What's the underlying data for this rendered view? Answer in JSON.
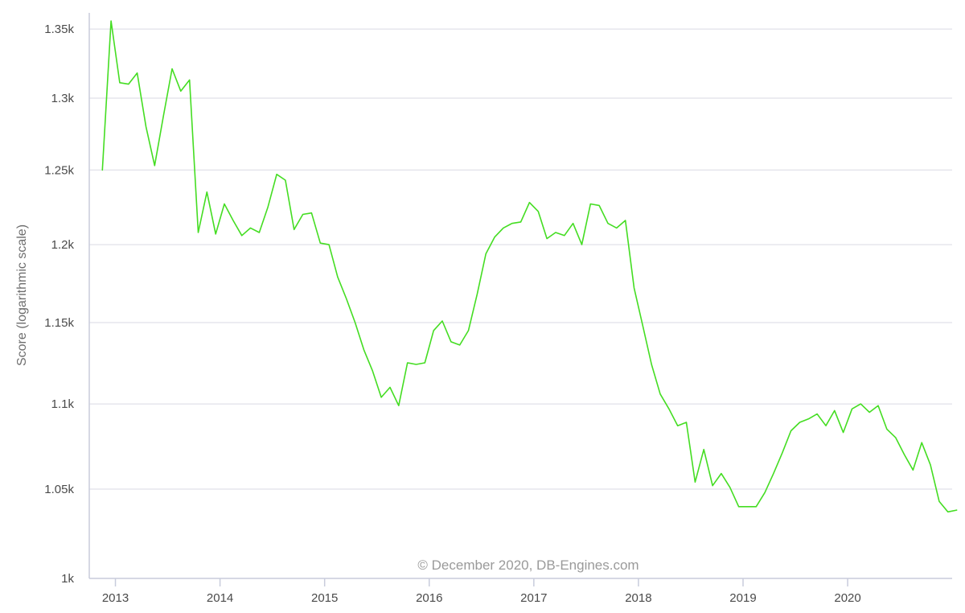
{
  "chart_data": {
    "type": "line",
    "title": "",
    "xlabel": "",
    "ylabel": "Score (logarithmic scale)",
    "y_scale": "log",
    "ylim": [
      1000,
      1362
    ],
    "xlim": [
      "2012-10-01",
      "2020-12-31"
    ],
    "grid": true,
    "y_ticks": [
      {
        "value": 1000,
        "label": "1k"
      },
      {
        "value": 1050,
        "label": "1.05k"
      },
      {
        "value": 1100,
        "label": "1.1k"
      },
      {
        "value": 1150,
        "label": "1.15k"
      },
      {
        "value": 1200,
        "label": "1.2k"
      },
      {
        "value": 1250,
        "label": "1.25k"
      },
      {
        "value": 1300,
        "label": "1.3k"
      },
      {
        "value": 1350,
        "label": "1.35k"
      }
    ],
    "x_ticks": [
      "2013",
      "2014",
      "2015",
      "2016",
      "2017",
      "2018",
      "2019",
      "2020"
    ],
    "credit": "© December 2020, DB-Engines.com",
    "series": [
      {
        "color": "#44dd22",
        "points": [
          [
            "2012-11",
            1250
          ],
          [
            "2012-12",
            1356
          ],
          [
            "2013-01",
            1311
          ],
          [
            "2013-02",
            1310
          ],
          [
            "2013-03",
            1318
          ],
          [
            "2013-04",
            1280
          ],
          [
            "2013-05",
            1253
          ],
          [
            "2013-06",
            1287
          ],
          [
            "2013-07",
            1321
          ],
          [
            "2013-08",
            1305
          ],
          [
            "2013-09",
            1313
          ],
          [
            "2013-10",
            1208
          ],
          [
            "2013-11",
            1235
          ],
          [
            "2013-12",
            1207
          ],
          [
            "2014-01",
            1227
          ],
          [
            "2014-02",
            1216
          ],
          [
            "2014-03",
            1206
          ],
          [
            "2014-04",
            1211
          ],
          [
            "2014-05",
            1208
          ],
          [
            "2014-06",
            1225
          ],
          [
            "2014-07",
            1247
          ],
          [
            "2014-08",
            1243
          ],
          [
            "2014-09",
            1210
          ],
          [
            "2014-10",
            1220
          ],
          [
            "2014-11",
            1221
          ],
          [
            "2014-12",
            1201
          ],
          [
            "2015-01",
            1200
          ],
          [
            "2015-02",
            1179
          ],
          [
            "2015-03",
            1165
          ],
          [
            "2015-04",
            1150
          ],
          [
            "2015-05",
            1133
          ],
          [
            "2015-06",
            1120
          ],
          [
            "2015-07",
            1104
          ],
          [
            "2015-08",
            1110
          ],
          [
            "2015-09",
            1099
          ],
          [
            "2015-10",
            1125
          ],
          [
            "2015-11",
            1124
          ],
          [
            "2015-12",
            1125
          ],
          [
            "2016-01",
            1145
          ],
          [
            "2016-02",
            1151
          ],
          [
            "2016-03",
            1138
          ],
          [
            "2016-04",
            1136
          ],
          [
            "2016-05",
            1145
          ],
          [
            "2016-06",
            1168
          ],
          [
            "2016-07",
            1194
          ],
          [
            "2016-08",
            1205
          ],
          [
            "2016-09",
            1211
          ],
          [
            "2016-10",
            1214
          ],
          [
            "2016-11",
            1215
          ],
          [
            "2016-12",
            1228
          ],
          [
            "2017-01",
            1222
          ],
          [
            "2017-02",
            1204
          ],
          [
            "2017-03",
            1208
          ],
          [
            "2017-04",
            1206
          ],
          [
            "2017-05",
            1214
          ],
          [
            "2017-06",
            1200
          ],
          [
            "2017-07",
            1227
          ],
          [
            "2017-08",
            1226
          ],
          [
            "2017-09",
            1214
          ],
          [
            "2017-10",
            1211
          ],
          [
            "2017-11",
            1216
          ],
          [
            "2017-12",
            1172
          ],
          [
            "2018-01",
            1148
          ],
          [
            "2018-02",
            1124
          ],
          [
            "2018-03",
            1106
          ],
          [
            "2018-04",
            1097
          ],
          [
            "2018-05",
            1087
          ],
          [
            "2018-06",
            1089
          ],
          [
            "2018-07",
            1054
          ],
          [
            "2018-08",
            1073
          ],
          [
            "2018-09",
            1052
          ],
          [
            "2018-10",
            1059
          ],
          [
            "2018-11",
            1051
          ],
          [
            "2018-12",
            1040
          ],
          [
            "2019-01",
            1040
          ],
          [
            "2019-02",
            1040
          ],
          [
            "2019-03",
            1048
          ],
          [
            "2019-04",
            1059
          ],
          [
            "2019-05",
            1071
          ],
          [
            "2019-06",
            1084
          ],
          [
            "2019-07",
            1089
          ],
          [
            "2019-08",
            1091
          ],
          [
            "2019-09",
            1094
          ],
          [
            "2019-10",
            1087
          ],
          [
            "2019-11",
            1096
          ],
          [
            "2019-12",
            1083
          ],
          [
            "2020-01",
            1097
          ],
          [
            "2020-02",
            1100
          ],
          [
            "2020-03",
            1095
          ],
          [
            "2020-04",
            1099
          ],
          [
            "2020-05",
            1085
          ],
          [
            "2020-06",
            1080
          ],
          [
            "2020-07",
            1070
          ],
          [
            "2020-08",
            1061
          ],
          [
            "2020-09",
            1077
          ],
          [
            "2020-10",
            1064
          ],
          [
            "2020-11",
            1043
          ],
          [
            "2020-12",
            1037
          ],
          [
            "2021-01",
            1038
          ]
        ]
      }
    ]
  }
}
